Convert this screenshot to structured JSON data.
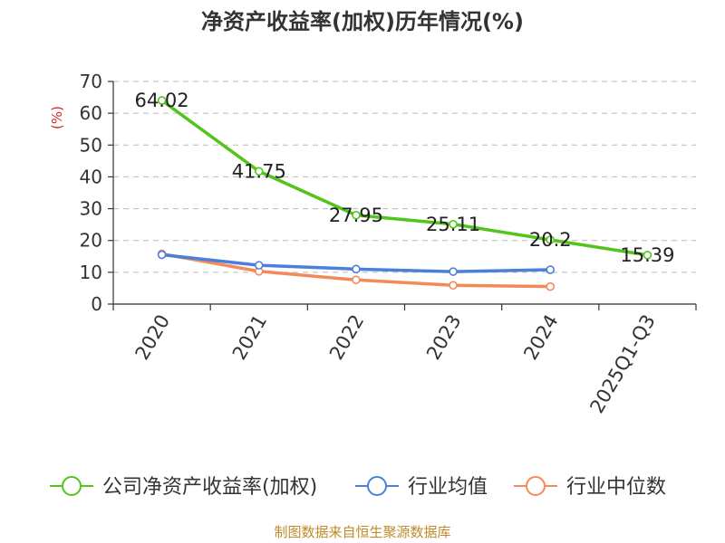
{
  "chart_data": {
    "type": "line",
    "title": "净资产收益率(加权)历年情况(%)",
    "ylabel": "(%)",
    "xlabel": "",
    "categories": [
      "2020",
      "2021",
      "2022",
      "2023",
      "2024",
      "2025Q1-Q3"
    ],
    "ylim": [
      0,
      70
    ],
    "yticks": [
      0,
      10,
      20,
      30,
      40,
      50,
      60,
      70
    ],
    "grid": true,
    "legend_position": "bottom",
    "series": [
      {
        "name": "公司净资产收益率(加权)",
        "color": "#52c41a",
        "values": [
          64.02,
          41.75,
          27.95,
          25.11,
          20.2,
          15.39
        ],
        "labels": [
          "64.02",
          "41.75",
          "27.95",
          "25.11",
          "20.2",
          "15.39"
        ]
      },
      {
        "name": "行业均值",
        "color": "#4a7fdc",
        "values": [
          15.5,
          12.2,
          11.0,
          10.2,
          10.8,
          null
        ]
      },
      {
        "name": "行业中位数",
        "color": "#f5895a",
        "values": [
          15.8,
          10.3,
          7.6,
          5.9,
          5.5,
          null
        ]
      }
    ]
  },
  "source_note": "制图数据来自恒生聚源数据库"
}
